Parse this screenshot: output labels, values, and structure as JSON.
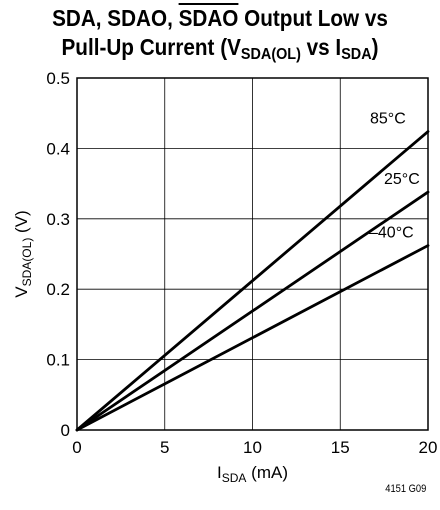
{
  "title": {
    "line1_a": "SDA, SDAO, ",
    "line1_over": "SDAO",
    "line1_b": " Output Low vs",
    "line2_a": "Pull-Up Current (V",
    "line2_sub1": "SDA(OL)",
    "line2_b": " vs I",
    "line2_sub2": "SDA",
    "line2_c": ")"
  },
  "figure_number": "4151 G09",
  "chart_data": {
    "type": "line",
    "xlabel": {
      "main": "I",
      "sub": "SDA",
      "rest": " (mA)"
    },
    "ylabel": {
      "main": "V",
      "sub": "SDA(OL)",
      "rest": " (V)"
    },
    "xlim": [
      0,
      20
    ],
    "ylim": [
      0,
      0.5
    ],
    "xticks": [
      0,
      5,
      10,
      15,
      20
    ],
    "xtick_labels": [
      "0",
      "5",
      "10",
      "15",
      "20"
    ],
    "yticks": [
      0,
      0.1,
      0.2,
      0.3,
      0.4,
      0.5
    ],
    "ytick_labels": [
      "0",
      "0.1",
      "0.2",
      "0.3",
      "0.4",
      "0.5"
    ],
    "grid": true,
    "series": [
      {
        "name": "85°C",
        "x": [
          0,
          20
        ],
        "y": [
          0,
          0.424
        ]
      },
      {
        "name": "25°C",
        "x": [
          0,
          20
        ],
        "y": [
          0,
          0.338
        ]
      },
      {
        "name": "–40°C",
        "x": [
          0,
          20
        ],
        "y": [
          0,
          0.262
        ]
      }
    ],
    "series_colors": [
      "#000000",
      "#000000",
      "#000000"
    ]
  }
}
